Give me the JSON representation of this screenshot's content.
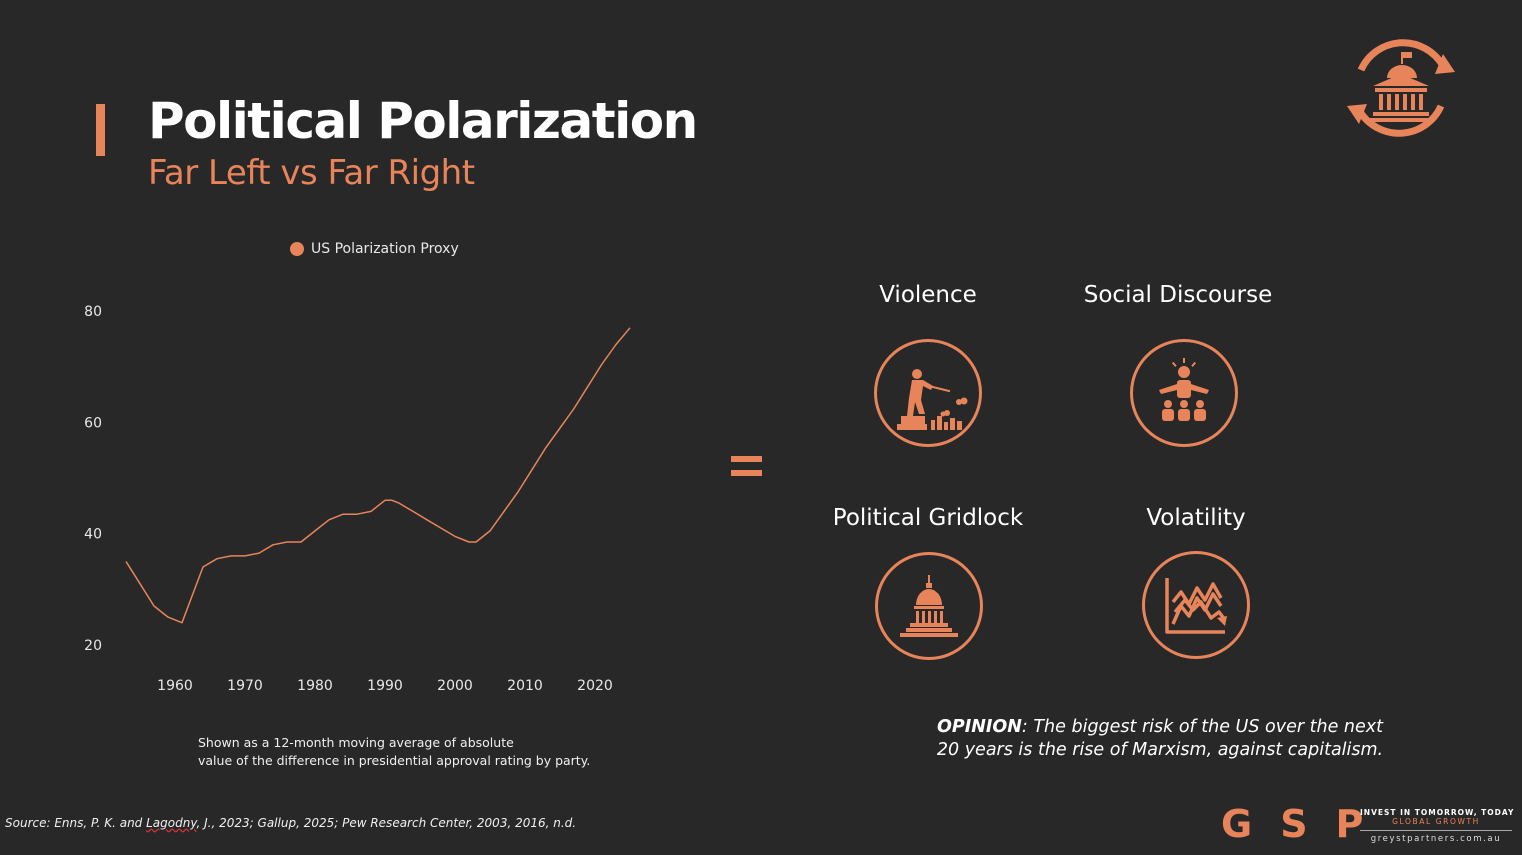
{
  "header": {
    "title": "Political Polarization",
    "subtitle": "Far Left vs Far Right"
  },
  "colors": {
    "accent": "#E8845A",
    "background": "#282828",
    "text": "#FFFFFF"
  },
  "icons": {
    "corner": "government-building-cycle-icon",
    "violence": "shooter-icon",
    "social_discourse": "speaker-crowd-icon",
    "political_gridlock": "capitol-dome-icon",
    "volatility": "volatile-chart-icon"
  },
  "chart_data": {
    "type": "line",
    "series": [
      {
        "name": "US Polarization Proxy",
        "x": [
          1953,
          1955,
          1957,
          1959,
          1961,
          1964,
          1966,
          1968,
          1970,
          1972,
          1974,
          1976,
          1978,
          1980,
          1982,
          1984,
          1986,
          1988,
          1989,
          1990,
          1991,
          1992,
          1994,
          1996,
          1998,
          2000,
          2002,
          2003,
          2005,
          2007,
          2009,
          2011,
          2013,
          2015,
          2017,
          2019,
          2021,
          2023,
          2025
        ],
        "y": [
          35,
          31,
          27,
          25,
          24,
          34,
          35.5,
          36,
          36,
          36.5,
          38,
          38.5,
          38.5,
          40.5,
          42.5,
          43.5,
          43.5,
          44,
          45,
          46,
          46,
          45.5,
          44,
          42.5,
          41,
          39.5,
          38.5,
          38.5,
          40.5,
          44,
          47.5,
          51.5,
          55.5,
          59,
          62.5,
          66.5,
          70.5,
          74,
          77
        ]
      }
    ],
    "xticks": [
      "1960",
      "1970",
      "1980",
      "1990",
      "2000",
      "2010",
      "2020"
    ],
    "yticks": [
      "80",
      "60",
      "40",
      "20"
    ],
    "xlim": [
      1951,
      2028
    ],
    "ylim": [
      11,
      82
    ],
    "legend_position": "top",
    "grid": false
  },
  "chart_note": {
    "line1": "Shown as a 12-month moving average of absolute",
    "line2": "value of the difference in presidential approval rating by party."
  },
  "equals_sign": "=",
  "risks": {
    "violence": "Violence",
    "social_discourse": "Social Discourse",
    "political_gridlock": "Political Gridlock",
    "volatility": "Volatility"
  },
  "opinion": {
    "label": "OPINION",
    "text_line1": ": The biggest risk of the US over the next",
    "text_line2": "20 years is the rise of Marxism, against capitalism."
  },
  "source": {
    "prefix": "Source: Enns, P. K. and ",
    "flagged": "Lagodny",
    "suffix": ", J., 2023; Gallup, 2025; Pew Research Center, 2003, 2016, n.d."
  },
  "brand": {
    "letters": "GSP",
    "tagline": "INVEST IN TOMORROW, TODAY",
    "subline": "GLOBAL GROWTH",
    "url": "greystpartners.com.au"
  }
}
